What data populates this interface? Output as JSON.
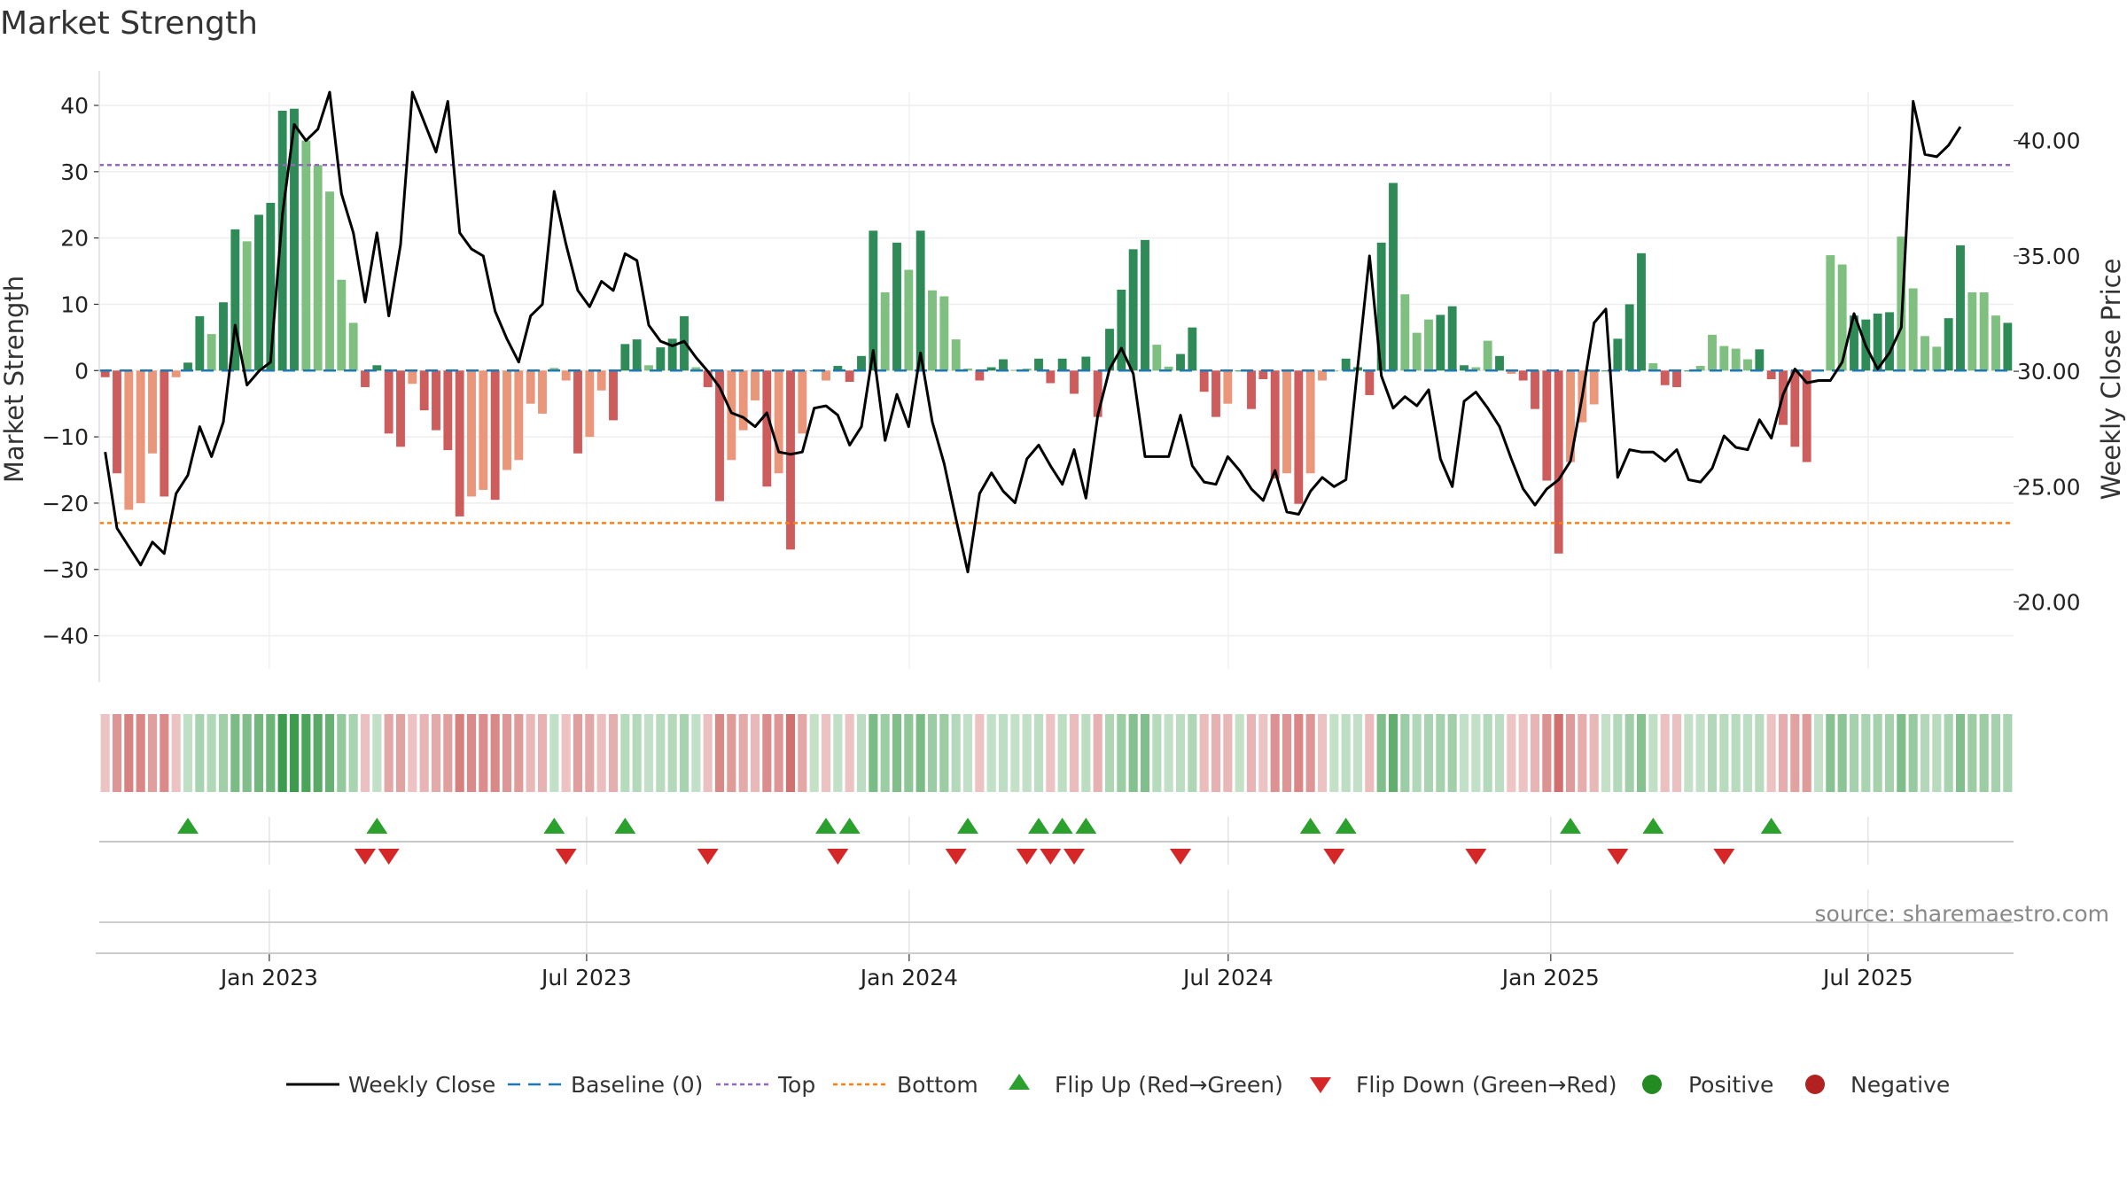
{
  "chart_data": {
    "type": "bar+line",
    "title": "Market Strength",
    "ylabel_left": "Market Strength",
    "ylabel_right": "Weekly Close Price",
    "ylim_left": [
      -45,
      42
    ],
    "ylim_right": [
      17.1,
      42.1
    ],
    "yticks_left": [
      40,
      30,
      20,
      10,
      0,
      -10,
      -20,
      -30,
      -40
    ],
    "yticks_left_labels": [
      "40",
      "30",
      "20",
      "10",
      "0",
      "−10",
      "−20",
      "−30",
      "−40"
    ],
    "yticks_right": [
      40,
      35,
      30,
      25,
      20
    ],
    "yticks_right_labels": [
      "40.00",
      "35.00",
      "30.00",
      "25.00",
      "20.00"
    ],
    "x_start": "2022-09-26",
    "x_end": "2025-09-22",
    "xticks": [
      "2023-01-01",
      "2023-07-01",
      "2024-01-01",
      "2024-07-01",
      "2025-01-01",
      "2025-07-01"
    ],
    "xtick_labels": [
      "Jan 2023",
      "Jul 2023",
      "Jan 2024",
      "Jul 2024",
      "Jan 2025",
      "Jul 2025"
    ],
    "top_level": 31,
    "bottom_level": -23,
    "baseline": 0,
    "strength_values": [
      -1,
      -15.5,
      -21,
      -20,
      -12.5,
      -19,
      -1,
      1.2,
      8.2,
      5.5,
      10.3,
      21.3,
      19.5,
      23.5,
      25.3,
      39.2,
      39.5,
      34.7,
      31,
      27,
      13.7,
      7.2,
      -2.5,
      0.8,
      -9.5,
      -11.5,
      -2,
      -6,
      -9,
      -12,
      -22,
      -19,
      -18,
      -19.5,
      -15,
      -13.5,
      -5,
      -6.5,
      0.4,
      -1.5,
      -12.5,
      -10,
      -3,
      -7.5,
      4,
      4.7,
      0.8,
      3.5,
      4.8,
      8.2,
      0.5,
      -2.5,
      -19.7,
      -13.5,
      -9,
      -4.5,
      -17.5,
      -15.5,
      -27,
      -9.5,
      0,
      -1.5,
      0.7,
      -1.7,
      2.2,
      21.1,
      11.8,
      19.3,
      15.2,
      21.1,
      12.1,
      11.2,
      4.7,
      0.3,
      -1.5,
      0.5,
      1.7,
      0.1,
      0.3,
      1.8,
      -1.9,
      1.8,
      -3.5,
      2.1,
      -7,
      6.3,
      12.2,
      18.3,
      19.7,
      3.9,
      0.6,
      2.5,
      6.5,
      -3.2,
      -7,
      -5,
      0,
      -5.8,
      -1.3,
      -16.3,
      -15.5,
      -20.1,
      -15.5,
      -1.5,
      0,
      1.8,
      0.5,
      -3.7,
      19.3,
      28.3,
      11.5,
      5.7,
      7.7,
      8.4,
      9.7,
      0.8,
      0.5,
      4.5,
      2.2,
      -0.5,
      -1.5,
      -5.8,
      -16.6,
      -27.6,
      -13.8,
      -7.8,
      -5.1,
      0,
      4.8,
      10,
      17.7,
      1.1,
      -2.2,
      -2.5,
      0,
      0.7,
      5.4,
      3.7,
      3.3,
      1.7,
      3.2,
      -1.3,
      -8.2,
      -11.5,
      -13.8,
      0,
      17.4,
      16,
      8.3,
      7.7,
      8.6,
      8.8,
      20.2,
      12.4,
      5.2,
      3.6,
      7.9,
      18.9,
      11.8,
      11.8,
      8.3,
      7.2
    ],
    "strength_light_flags": [
      0,
      0,
      1,
      1,
      1,
      0,
      1,
      0,
      0,
      1,
      0,
      0,
      1,
      0,
      0,
      0,
      0,
      1,
      1,
      1,
      1,
      1,
      0,
      0,
      0,
      0,
      1,
      0,
      0,
      0,
      0,
      1,
      1,
      0,
      1,
      1,
      1,
      1,
      1,
      1,
      0,
      1,
      1,
      0,
      0,
      0,
      1,
      0,
      0,
      0,
      1,
      0,
      0,
      1,
      1,
      1,
      0,
      1,
      0,
      1,
      0,
      1,
      0,
      0,
      0,
      0,
      1,
      0,
      1,
      0,
      1,
      1,
      1,
      1,
      0,
      0,
      0,
      1,
      1,
      0,
      0,
      0,
      0,
      0,
      0,
      0,
      0,
      0,
      0,
      1,
      1,
      0,
      0,
      0,
      0,
      1,
      0,
      0,
      0,
      0,
      1,
      0,
      1,
      1,
      1,
      0,
      0,
      0,
      0,
      0,
      1,
      1,
      1,
      0,
      0,
      0,
      1,
      1,
      0,
      1,
      0,
      0,
      0,
      0,
      1,
      1,
      1,
      0,
      0,
      0,
      0,
      1,
      0,
      0,
      0,
      1,
      1,
      1,
      1,
      1,
      0,
      0,
      0,
      0,
      0,
      1,
      1,
      1,
      0,
      0,
      0,
      0,
      1,
      1,
      1,
      1,
      0,
      0,
      1,
      1,
      1
    ],
    "close_values": [
      26.5,
      23.2,
      22.4,
      21.6,
      22.6,
      22.1,
      24.7,
      25.5,
      27.6,
      26.3,
      27.8,
      32,
      29.4,
      30,
      30.4,
      36.8,
      40.7,
      40,
      40.5,
      42.1,
      37.7,
      36,
      33,
      36,
      32.4,
      35.5,
      42.1,
      40.8,
      39.5,
      41.7,
      36,
      35.3,
      35,
      32.6,
      31.4,
      30.4,
      32.4,
      32.9,
      37.8,
      35.5,
      33.5,
      32.8,
      33.9,
      33.5,
      35.1,
      34.8,
      32,
      31.3,
      31.1,
      31.3,
      30.6,
      30,
      29.3,
      28.2,
      28,
      27.6,
      28.2,
      26.5,
      26.4,
      26.5,
      28.4,
      28.5,
      28.1,
      26.8,
      27.6,
      30.9,
      27,
      29,
      27.6,
      30.8,
      27.8,
      26,
      23.6,
      21.3,
      24.7,
      25.6,
      24.8,
      24.3,
      26.2,
      26.8,
      25.9,
      25.1,
      26.6,
      24.5,
      28.1,
      30.1,
      31,
      29.9,
      26.3,
      26.3,
      26.3,
      28.1,
      25.9,
      25.2,
      25.1,
      26.3,
      25.7,
      24.9,
      24.4,
      25.7,
      23.9,
      23.8,
      24.8,
      25.4,
      25,
      25.3,
      30.2,
      35,
      29.8,
      28.4,
      28.9,
      28.5,
      29.2,
      26.2,
      25,
      28.7,
      29.1,
      28.4,
      27.6,
      26.2,
      24.9,
      24.2,
      24.9,
      25.3,
      26.1,
      28.9,
      32.1,
      32.7,
      25.4,
      26.6,
      26.5,
      26.5,
      26.1,
      26.6,
      25.3,
      25.2,
      25.8,
      27.2,
      26.7,
      26.6,
      27.9,
      27.1,
      29,
      30.1,
      29.5,
      29.6,
      29.6,
      30.4,
      32.5,
      31.1,
      30.1,
      30.8,
      31.9,
      41.7,
      39.4,
      39.3,
      39.8,
      40.6
    ],
    "flip_up_indices": [
      7,
      23,
      38,
      44,
      61,
      63,
      73,
      79,
      81,
      83,
      102,
      105,
      124,
      131,
      141
    ],
    "flip_down_indices": [
      22,
      24,
      39,
      51,
      62,
      72,
      78,
      80,
      82,
      91,
      104,
      116,
      128,
      137
    ],
    "legend": [
      "Weekly Close",
      "Baseline (0)",
      "Top",
      "Bottom",
      "Flip Up (Red→Green)",
      "Flip Down (Green→Red)",
      "Positive",
      "Negative"
    ],
    "source": "source: sharemaestro.com"
  },
  "colors": {
    "strong_green": "#2e8b57",
    "light_green": "#7fbf7f",
    "strong_red": "#cd5c5c",
    "light_red": "#e9967a",
    "line": "#000000",
    "baseline": "#1f77b4",
    "top": "#9467bd",
    "bottom": "#ff7f0e",
    "flip_up": "#2ca02c",
    "flip_down": "#d62728",
    "positive": "#228b22",
    "negative": "#b22222",
    "heat_green": "#3a9a4a",
    "heat_red": "#c44545"
  }
}
